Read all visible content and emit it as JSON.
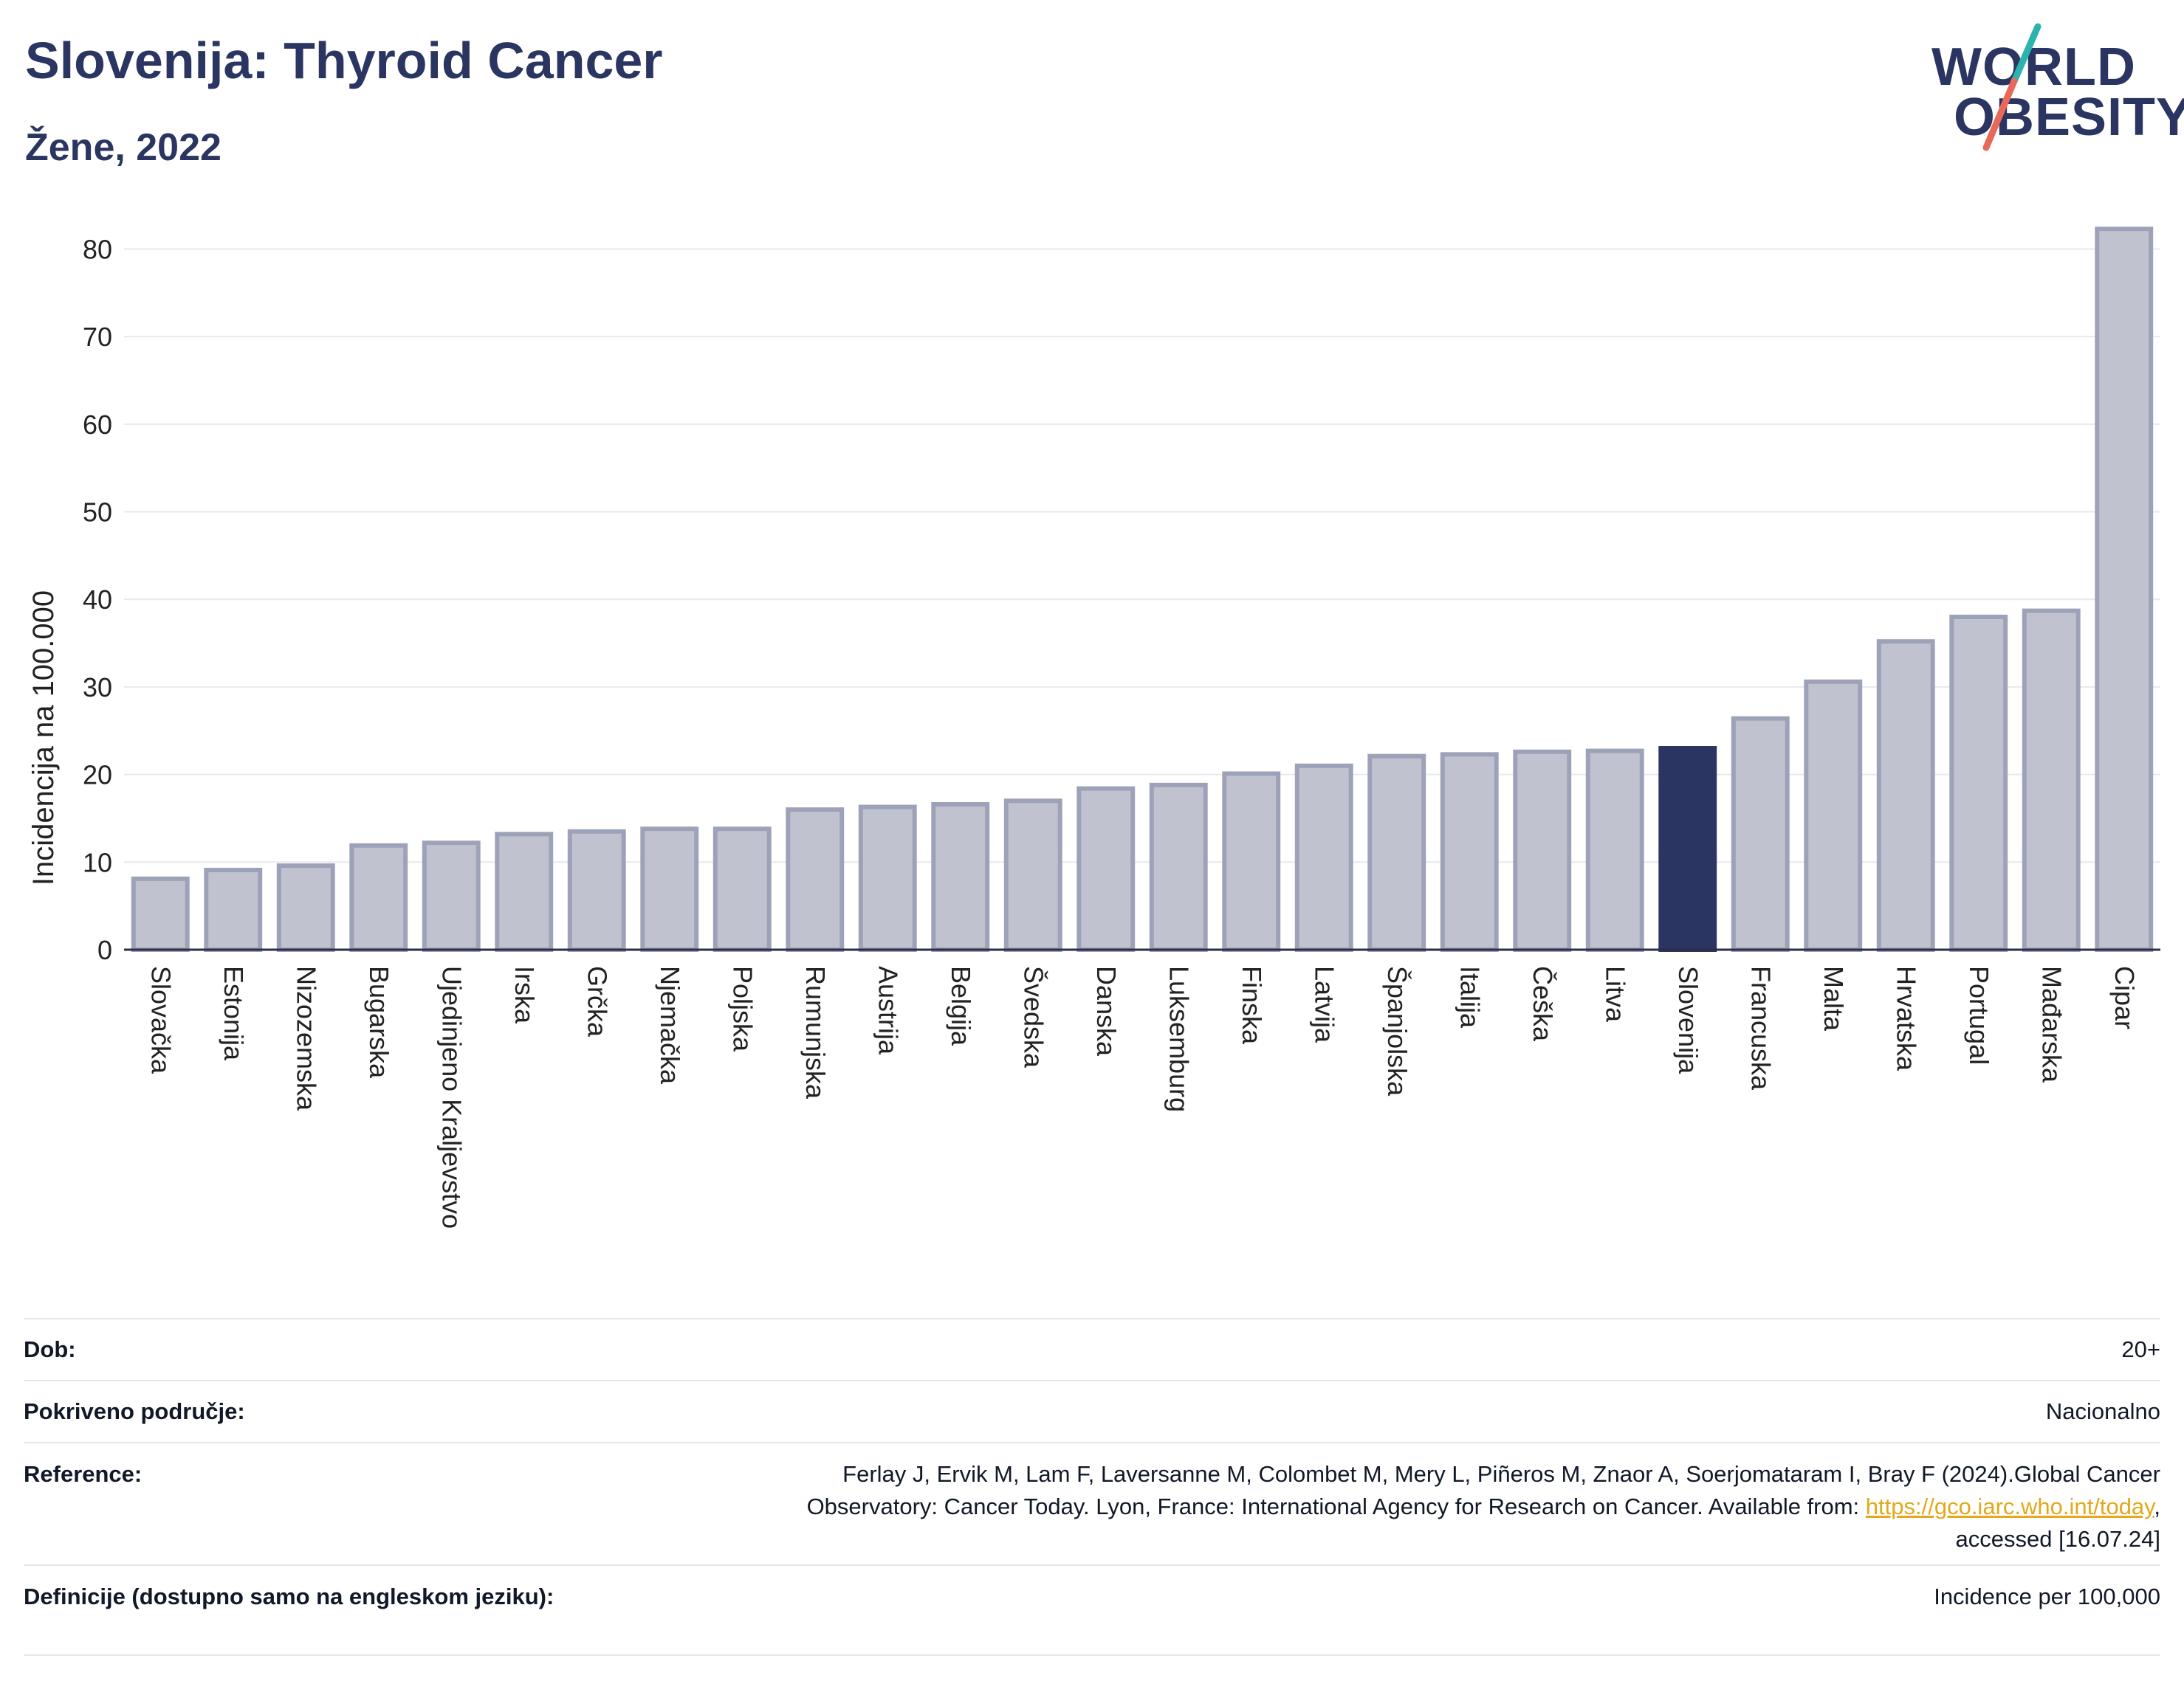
{
  "header": {
    "title": "Slovenija: Thyroid Cancer",
    "subtitle": "Žene, 2022"
  },
  "logo": {
    "line1": "WORLD",
    "line2": "OBESITY",
    "slash_colors": [
      "#2bb3b1",
      "#e8685a"
    ]
  },
  "chart_data": {
    "type": "bar",
    "title": "Slovenija: Thyroid Cancer",
    "subtitle": "Žene, 2022",
    "xlabel": "",
    "ylabel": "Incidencija na 100.000",
    "ylim": [
      0,
      84
    ],
    "yticks": [
      0,
      10,
      20,
      30,
      40,
      50,
      60,
      70,
      80
    ],
    "grid": true,
    "highlight": "Slovenija",
    "colors": {
      "bar": "#c0c3cf",
      "bar_border": "#9da2b8",
      "highlight": "#2a3561"
    },
    "categories": [
      "Slovačka",
      "Estonija",
      "Nizozemska",
      "Bugarska",
      "Ujedinjeno Kraljevstvo",
      "Irska",
      "Grčka",
      "Njemačka",
      "Poljska",
      "Rumunjska",
      "Austrija",
      "Belgija",
      "Švedska",
      "Danska",
      "Luksemburg",
      "Finska",
      "Latvija",
      "Španjolska",
      "Italija",
      "Češka",
      "Litva",
      "Slovenija",
      "Francuska",
      "Malta",
      "Hrvatska",
      "Portugal",
      "Mađarska",
      "Cipar"
    ],
    "values": [
      8.1,
      9.1,
      9.6,
      11.9,
      12.2,
      13.2,
      13.5,
      13.8,
      13.8,
      16.0,
      16.3,
      16.6,
      17.0,
      18.4,
      18.8,
      20.1,
      21.0,
      22.1,
      22.3,
      22.6,
      22.7,
      23.0,
      26.4,
      30.6,
      35.2,
      38.0,
      38.7,
      82.3
    ]
  },
  "meta": {
    "age_label": "Dob:",
    "age_value": "20+",
    "coverage_label": "Pokriveno područje:",
    "coverage_value": "Nacionalno",
    "reference_label": "Reference:",
    "reference_text_1": "Ferlay J, Ervik M, Lam F, Laversanne M, Colombet M, Mery L, Piñeros M, Znaor A, Soerjomataram I, Bray F (2024).Global Cancer",
    "reference_text_2": "Observatory: Cancer Today. Lyon, France: International Agency for Research on Cancer. Available from: ",
    "reference_link": "https://gco.iarc.who.int/today",
    "reference_text_3": ",",
    "reference_text_4": "accessed [16.07.24]",
    "definitions_label": "Definicije (dostupno samo na engleskom jeziku):",
    "definitions_value": "Incidence per 100,000"
  }
}
